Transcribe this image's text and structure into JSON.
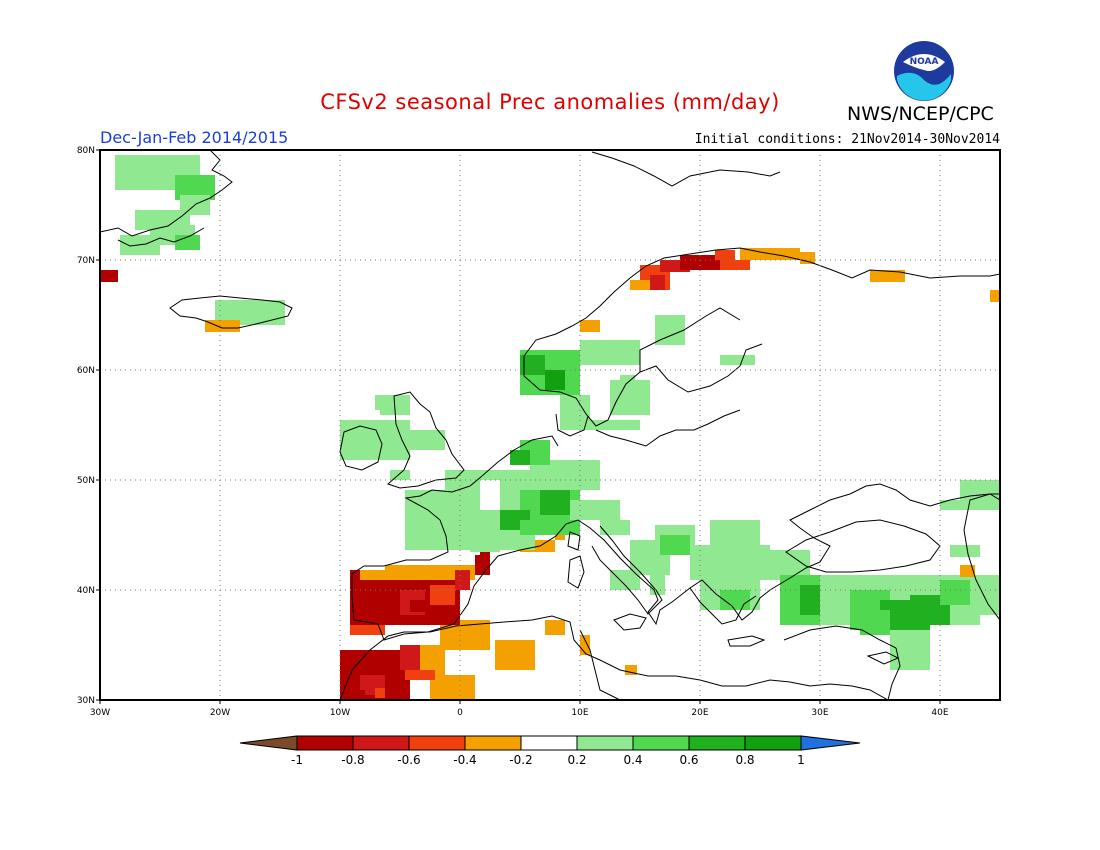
{
  "header": {
    "title": "CFSv2 seasonal Prec anomalies (mm/day)",
    "agency": "NWS/NCEP/CPC",
    "period": "Dec-Jan-Feb 2014/2015",
    "initial_conditions": "Initial conditions: 21Nov2014-30Nov2014",
    "logo_text": "NOAA"
  },
  "map": {
    "lon_range": [
      -30,
      45
    ],
    "lat_range": [
      30,
      80
    ],
    "lon_ticks": [
      "30W",
      "20W",
      "10W",
      "0",
      "10E",
      "20E",
      "30E",
      "40E"
    ],
    "lat_ticks": [
      "30N",
      "40N",
      "50N",
      "60N",
      "70N",
      "80N"
    ],
    "grid_style": "dotted"
  },
  "colorbar": {
    "ticks": [
      "-1",
      "-0.8",
      "-0.6",
      "-0.4",
      "-0.2",
      "0.2",
      "0.4",
      "0.6",
      "0.8",
      "1"
    ],
    "colors": [
      "#7a4a2a",
      "#b00000",
      "#d01818",
      "#f04010",
      "#f4a000",
      "#ffffff",
      "#90e890",
      "#50d850",
      "#20b020",
      "#10a010",
      "#2070e0"
    ]
  },
  "chart_data": {
    "type": "heatmap",
    "variable": "Precipitation anomaly",
    "units": "mm/day",
    "regions": [
      {
        "name": "Iberian Peninsula",
        "value": -0.8
      },
      {
        "name": "Northwest Africa",
        "value": -0.6
      },
      {
        "name": "Northern Scandinavia coast",
        "value": -0.5
      },
      {
        "name": "France / Central Europe",
        "value": 0.4
      },
      {
        "name": "Southern Norway",
        "value": 0.6
      },
      {
        "name": "Turkey / Anatolia",
        "value": 0.5
      },
      {
        "name": "Greenland",
        "value": 0.3
      },
      {
        "name": "Balkans",
        "value": 0.3
      }
    ]
  }
}
